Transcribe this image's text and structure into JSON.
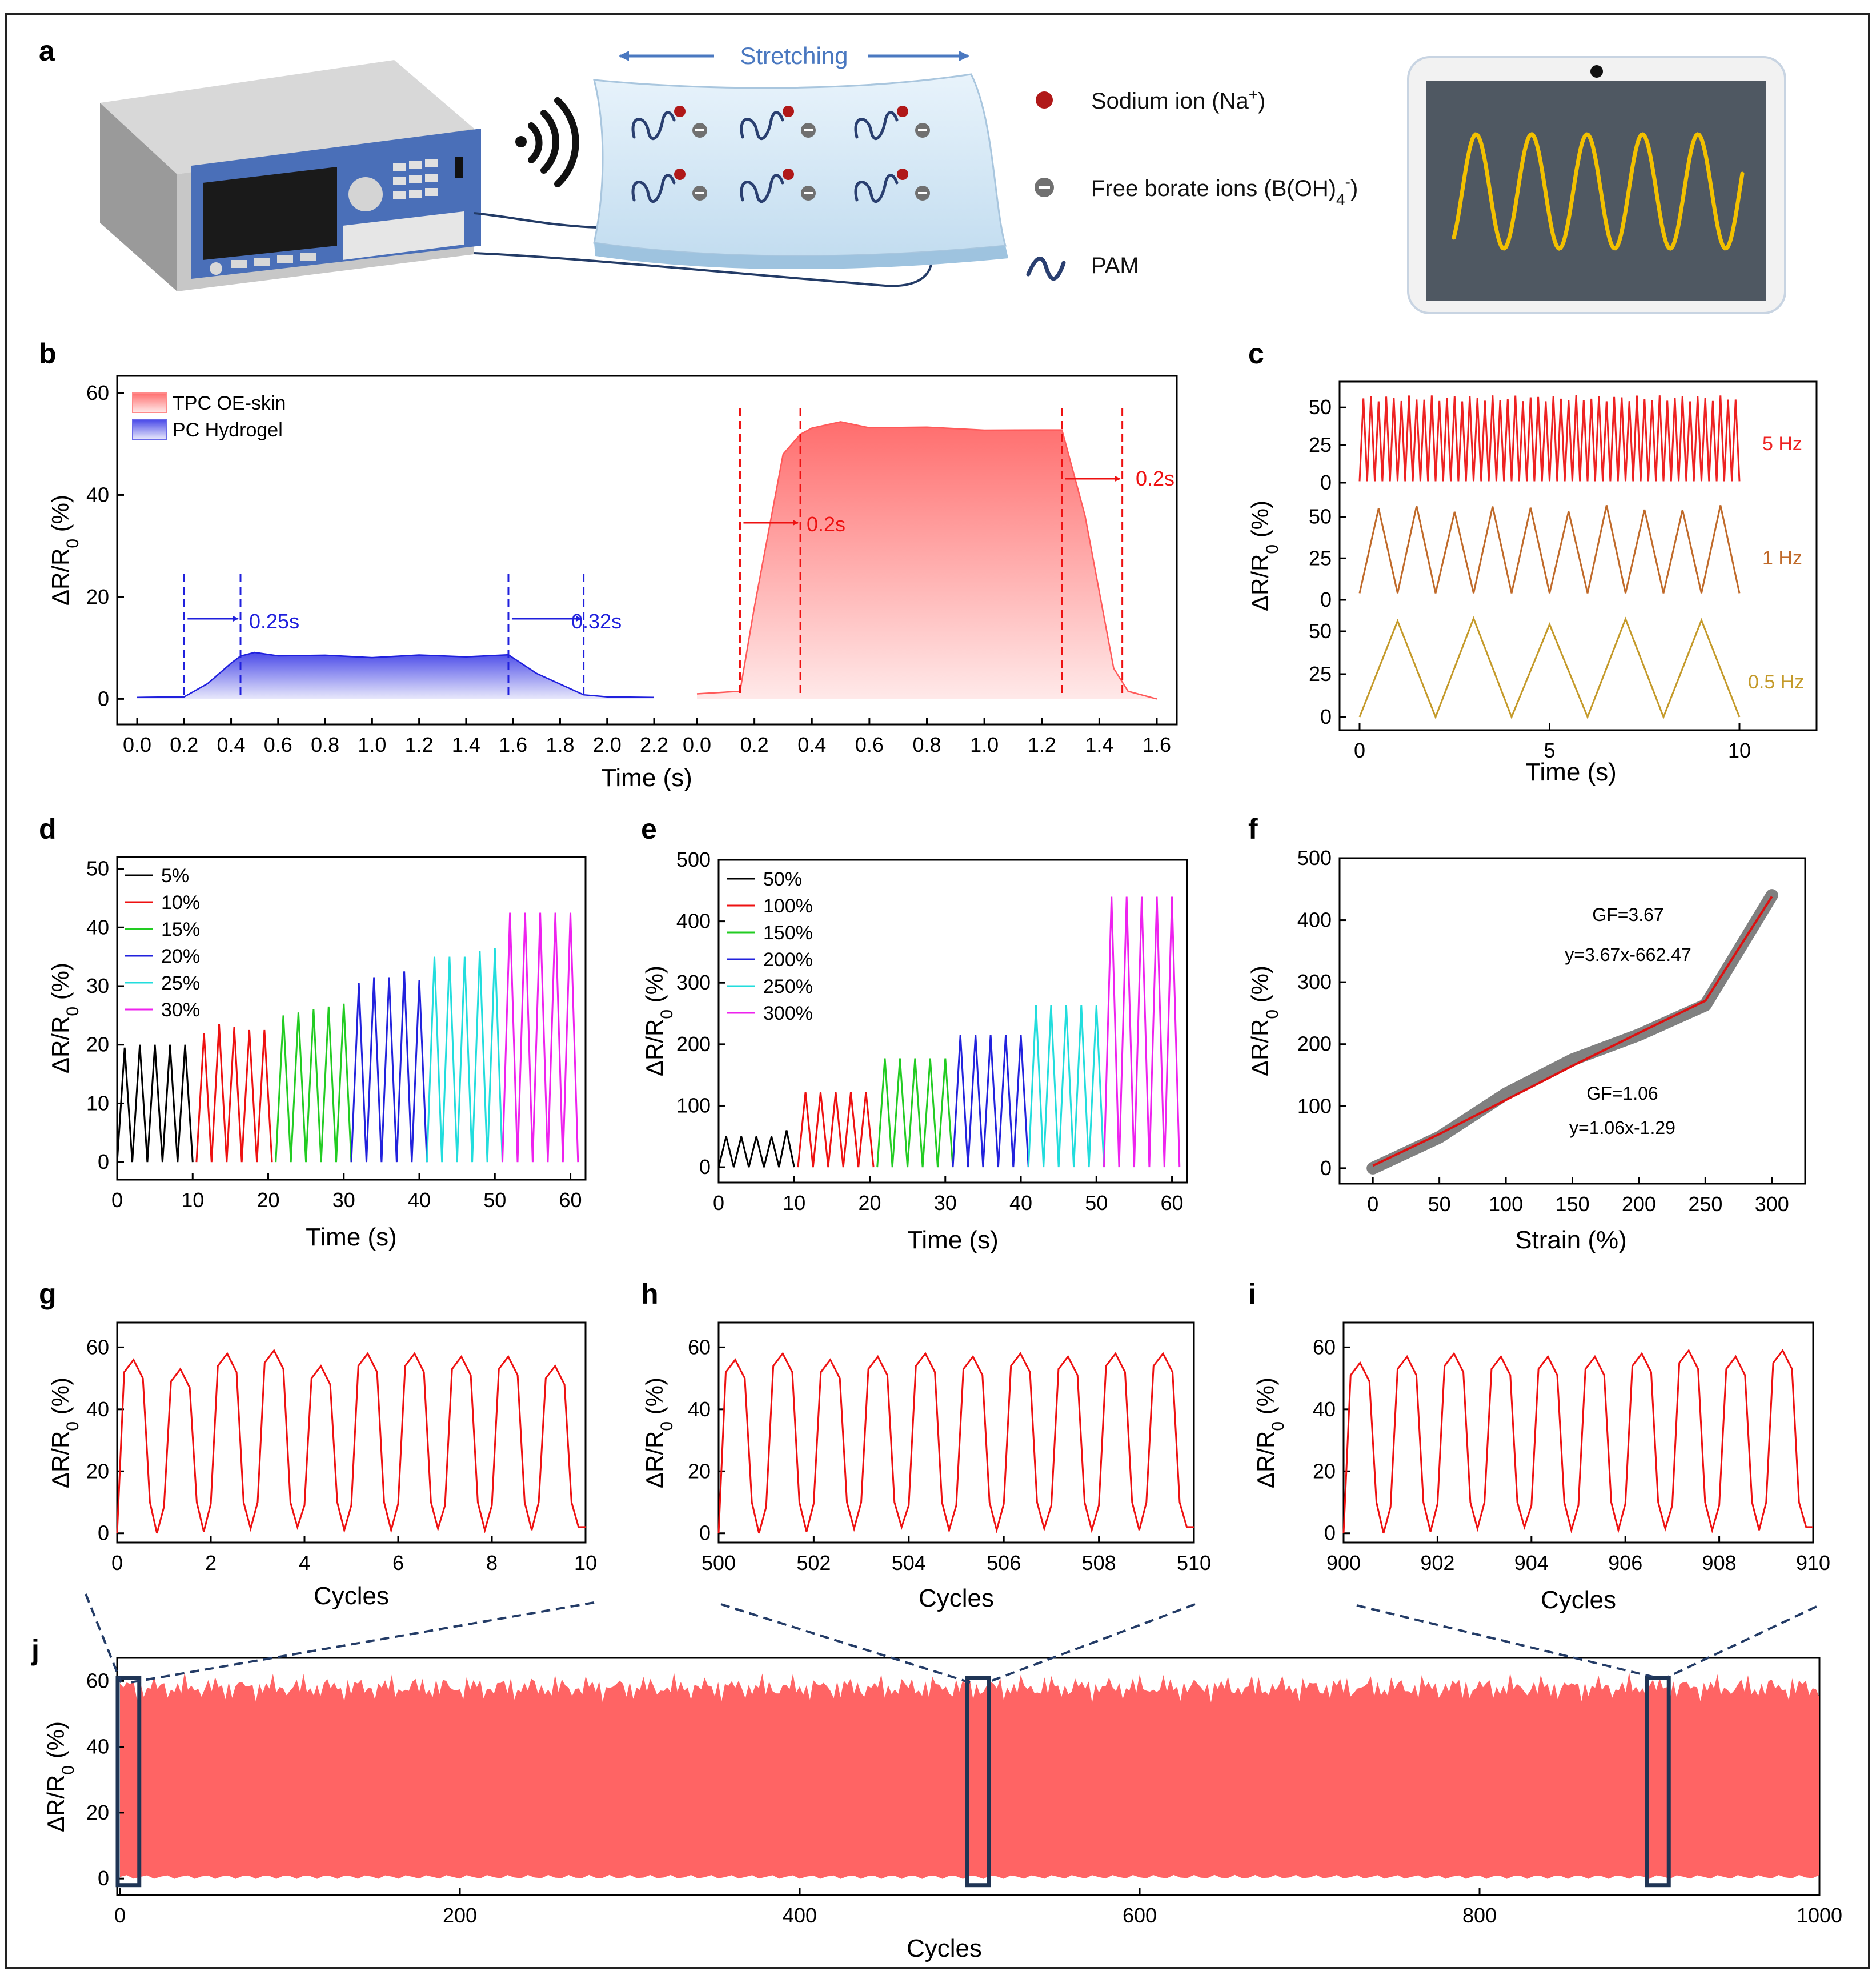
{
  "figure": {
    "panel_labels": [
      "a",
      "b",
      "c",
      "d",
      "e",
      "f",
      "g",
      "h",
      "i",
      "j"
    ],
    "y_axis_label": "ΔR/R",
    "y_axis_sub": "0",
    "y_axis_unit": " (%)",
    "schematic": {
      "stretching_label": "Stretching",
      "legend": [
        {
          "label": "Sodium ion (Na",
          "sup": "+",
          "tail": ")"
        },
        {
          "label": "Free borate ions (B(OH)",
          "sub": "4",
          "sup": "-",
          "tail": ")"
        },
        {
          "label": "PAM"
        }
      ],
      "colors": {
        "ion": "#b01818",
        "borate": "#707070",
        "pam": "#2a3f70",
        "screen": "#4f5862",
        "wave": "#f2c000"
      }
    }
  },
  "chart_data": [
    {
      "panel": "b",
      "type": "area",
      "xlabel": "Time (s)",
      "ylim": [
        -5,
        60
      ],
      "yticks": [
        0,
        20,
        40,
        60
      ],
      "legend": [
        "TPC OE-skin",
        "PC Hydrogel"
      ],
      "left_xticks": [
        "0.0",
        "0.2",
        "0.4",
        "0.6",
        "0.8",
        "1.0",
        "1.2",
        "1.4",
        "1.6",
        "1.8",
        "2.0",
        "2.2"
      ],
      "right_xticks": [
        "0.0",
        "0.2",
        "0.4",
        "0.6",
        "0.8",
        "1.0",
        "1.2",
        "1.4",
        "1.6"
      ],
      "series": [
        {
          "name": "PC Hydrogel",
          "color": "#2020dd",
          "x": [
            0.0,
            0.2,
            0.3,
            0.4,
            0.44,
            0.5,
            0.6,
            0.8,
            1.0,
            1.2,
            1.4,
            1.58,
            1.7,
            1.9,
            2.0,
            2.2
          ],
          "y": [
            0.3,
            0.4,
            3,
            7,
            8.5,
            9,
            8.6,
            8.4,
            8.3,
            8.4,
            8.5,
            8.4,
            5,
            0.8,
            0.4,
            0.3
          ]
        },
        {
          "name": "TPC OE-skin",
          "color": "#ff5a5a",
          "x": [
            0.0,
            0.15,
            0.2,
            0.3,
            0.36,
            0.4,
            0.5,
            0.6,
            0.8,
            1.0,
            1.2,
            1.27,
            1.35,
            1.45,
            1.5,
            1.6
          ],
          "y": [
            1,
            1.5,
            18,
            48,
            52,
            53,
            54.5,
            53,
            53.5,
            52.5,
            53,
            52.5,
            36,
            6,
            1.5,
            0
          ]
        }
      ],
      "annotations": [
        {
          "text": "0.25s",
          "color": "#2020dd"
        },
        {
          "text": "0.32s",
          "color": "#2020dd"
        },
        {
          "text": "0.2s",
          "color": "#ee1111"
        },
        {
          "text": "0.2s",
          "color": "#ee1111"
        }
      ]
    },
    {
      "panel": "c",
      "type": "line",
      "xlabel": "Time (s)",
      "xlim": [
        0,
        10
      ],
      "xticks": [
        0,
        5,
        10
      ],
      "series": [
        {
          "name": "5 Hz",
          "color": "#ee2222",
          "freq": 5,
          "ymin": 1,
          "ymax": 56,
          "yticks": [
            0,
            25,
            50
          ]
        },
        {
          "name": "1 Hz",
          "color": "#c06a2a",
          "freq": 1,
          "ymin": 4,
          "ymax": 55,
          "yticks": [
            0,
            25,
            50
          ]
        },
        {
          "name": "0.5 Hz",
          "color": "#c49a2a",
          "freq": 0.5,
          "ymin": 0,
          "ymax": 56,
          "yticks": [
            0,
            25,
            50
          ]
        }
      ]
    },
    {
      "panel": "d",
      "type": "line",
      "xlabel": "Time (s)",
      "xlim": [
        0,
        62
      ],
      "ylim": [
        -3,
        52
      ],
      "xticks": [
        0,
        10,
        20,
        30,
        40,
        50,
        60
      ],
      "yticks": [
        0,
        10,
        20,
        30,
        40,
        50
      ],
      "series": [
        {
          "name": "5%",
          "color": "#000000",
          "start": 0,
          "peaks": [
            19.5,
            20,
            20,
            20,
            20
          ]
        },
        {
          "name": "10%",
          "color": "#ee1111",
          "start": 10.5,
          "peaks": [
            22,
            23.5,
            23,
            22.5,
            22.5
          ]
        },
        {
          "name": "15%",
          "color": "#22cc22",
          "start": 21,
          "peaks": [
            25,
            25.5,
            26,
            26.5,
            27
          ]
        },
        {
          "name": "20%",
          "color": "#2222dd",
          "start": 31,
          "peaks": [
            30.5,
            31.5,
            31.5,
            32.5,
            31
          ]
        },
        {
          "name": "25%",
          "color": "#22dddd",
          "start": 41,
          "peaks": [
            35,
            35,
            35,
            36,
            36.5
          ]
        },
        {
          "name": "30%",
          "color": "#ee22ee",
          "start": 51,
          "peaks": [
            42.5,
            42.5,
            42.5,
            42.5,
            42.5
          ]
        }
      ]
    },
    {
      "panel": "e",
      "type": "line",
      "xlabel": "Time (s)",
      "xlim": [
        0,
        62
      ],
      "ylim": [
        -25,
        500
      ],
      "xticks": [
        0,
        10,
        20,
        30,
        40,
        50,
        60
      ],
      "yticks": [
        0,
        100,
        200,
        300,
        400,
        500
      ],
      "series": [
        {
          "name": "50%",
          "color": "#000000",
          "start": 0,
          "peaks": [
            50,
            50,
            50,
            50,
            60
          ]
        },
        {
          "name": "100%",
          "color": "#ee1111",
          "start": 10.5,
          "peaks": [
            122,
            122,
            122,
            122,
            122
          ]
        },
        {
          "name": "150%",
          "color": "#22cc22",
          "start": 21,
          "peaks": [
            177,
            177,
            177,
            177,
            177
          ]
        },
        {
          "name": "200%",
          "color": "#2222dd",
          "start": 31,
          "peaks": [
            215,
            215,
            215,
            215,
            215
          ]
        },
        {
          "name": "250%",
          "color": "#22dddd",
          "start": 41,
          "peaks": [
            263,
            263,
            263,
            263,
            263
          ]
        },
        {
          "name": "300%",
          "color": "#ee22ee",
          "start": 51,
          "peaks": [
            440,
            440,
            440,
            440,
            440
          ]
        }
      ]
    },
    {
      "panel": "f",
      "type": "line",
      "xlabel": "Strain (%)",
      "xlim": [
        -25,
        325
      ],
      "ylim": [
        -25,
        500
      ],
      "xticks": [
        0,
        50,
        100,
        150,
        200,
        250,
        300
      ],
      "yticks": [
        0,
        100,
        200,
        300,
        400,
        500
      ],
      "series": [
        {
          "name": "measured",
          "color": "#808080",
          "x": [
            0,
            50,
            100,
            150,
            200,
            250,
            300
          ],
          "y": [
            0,
            50,
            120,
            175,
            215,
            263,
            440
          ]
        },
        {
          "name": "fit",
          "color": "#dd1111",
          "x": [
            0,
            50,
            100,
            150,
            200,
            250,
            300
          ],
          "y": [
            4,
            55,
            110,
            165,
            218,
            270,
            438
          ]
        }
      ],
      "annotations": [
        {
          "text": "GF=3.67"
        },
        {
          "text": "y=3.67x-662.47"
        },
        {
          "text": "GF=1.06"
        },
        {
          "text": "y=1.06x-1.29"
        }
      ]
    },
    {
      "panel": "g",
      "type": "line",
      "xlabel": "Cycles",
      "xlim": [
        0,
        10
      ],
      "ylim": [
        -3,
        68
      ],
      "xticks": [
        0,
        2,
        4,
        6,
        8,
        10
      ],
      "yticks": [
        0,
        20,
        40,
        60
      ],
      "color": "#ee1111",
      "peaks": [
        56,
        53,
        58,
        59,
        54,
        58,
        58,
        57,
        57,
        54
      ],
      "valleys": [
        0,
        0.5,
        1.5,
        2,
        1,
        1,
        1.5,
        1,
        1,
        2
      ]
    },
    {
      "panel": "h",
      "type": "line",
      "xlabel": "Cycles",
      "xlim": [
        500,
        510
      ],
      "ylim": [
        -3,
        68
      ],
      "xticks": [
        500,
        502,
        504,
        506,
        508,
        510
      ],
      "yticks": [
        0,
        20,
        40,
        60
      ],
      "color": "#ee1111",
      "peaks": [
        56,
        58,
        56,
        57,
        58,
        57,
        58,
        57,
        58,
        58
      ],
      "valleys": [
        0,
        0.5,
        1.5,
        2,
        1,
        1,
        1.5,
        1,
        1,
        2
      ]
    },
    {
      "panel": "i",
      "type": "line",
      "xlabel": "Cycles",
      "xlim": [
        900,
        910
      ],
      "ylim": [
        -3,
        68
      ],
      "xticks": [
        900,
        902,
        904,
        906,
        908,
        910
      ],
      "yticks": [
        0,
        20,
        40,
        60
      ],
      "color": "#ee1111",
      "peaks": [
        55,
        57,
        58,
        57,
        57,
        57,
        58,
        59,
        57,
        59
      ],
      "valleys": [
        0,
        0.5,
        1.5,
        2,
        1,
        1,
        1.5,
        1,
        1,
        2
      ]
    },
    {
      "panel": "j",
      "type": "area",
      "xlabel": "Cycles",
      "xlim": [
        0,
        1000
      ],
      "ylim": [
        -5,
        67
      ],
      "xticks": [
        0,
        200,
        400,
        600,
        800,
        1000
      ],
      "yticks": [
        0,
        20,
        40,
        60
      ],
      "color": "#ff6464",
      "mean_peak": 58,
      "mean_valley": 0.5,
      "highlight_windows": [
        [
          0,
          10
        ],
        [
          500,
          510
        ],
        [
          900,
          910
        ]
      ]
    }
  ]
}
